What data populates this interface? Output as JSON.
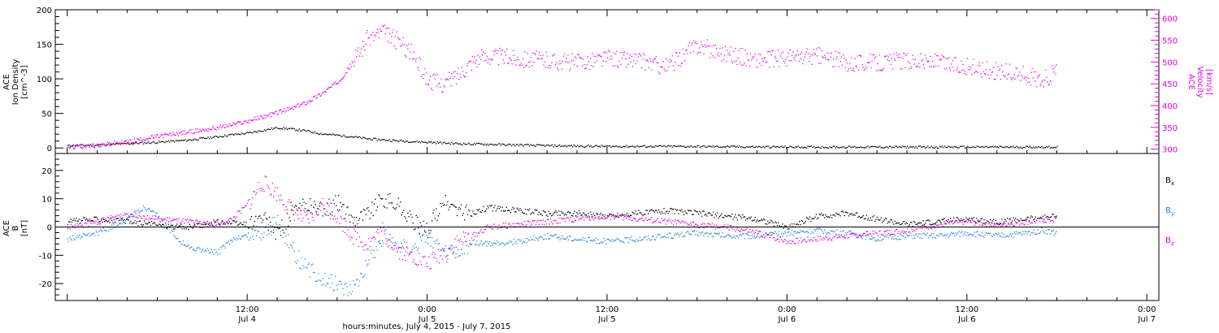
{
  "colors": {
    "axis": "#000000",
    "density": "#000000",
    "velocity": "#e400e4",
    "bx": "#000000",
    "by": "#1e84d8",
    "bz": "#e400e4"
  },
  "top_panel": {
    "left_label": [
      "ACE",
      "Ion Density",
      "[cm^-3]"
    ],
    "right_label": [
      "ACE",
      "Velocity",
      "[km/s]"
    ]
  },
  "bottom_panel": {
    "left_label": [
      "ACE",
      "B",
      "[nT]"
    ],
    "legend": [
      {
        "base": "B",
        "sub": "x",
        "color": "#000000"
      },
      {
        "base": "B",
        "sub": "y",
        "color": "#1e84d8"
      },
      {
        "base": "B",
        "sub": "z",
        "color": "#e400e4"
      }
    ]
  },
  "x_axis": {
    "title": "hours:minutes, July  4, 2015 - July  7, 2015",
    "tick_labels": [
      {
        "hours": 12,
        "time": "12:00",
        "day": "Jul 4"
      },
      {
        "hours": 24,
        "time": "0:00",
        "day": "Jul 5"
      },
      {
        "hours": 36,
        "time": "12:00",
        "day": "Jul 5"
      },
      {
        "hours": 48,
        "time": "0:00",
        "day": "Jul 6"
      },
      {
        "hours": 60,
        "time": "12:00",
        "day": "Jul 6"
      },
      {
        "hours": 72,
        "time": "0:00",
        "day": "Jul 7"
      }
    ]
  },
  "chart_data": [
    {
      "type": "scatter",
      "panel": "top",
      "x_unit": "hours since Jul 4 00:00",
      "xlim": [
        -0.8,
        72.8
      ],
      "ylim_left": [
        -8,
        200
      ],
      "ylim_right": [
        290,
        620
      ],
      "y_left_ticks": [
        0,
        50,
        100,
        150,
        200
      ],
      "y_right_ticks": [
        300,
        350,
        400,
        450,
        500,
        550,
        600
      ],
      "series": [
        {
          "axis": "left",
          "color": "#000000",
          "x": [
            0,
            2,
            4,
            6,
            8,
            10,
            11,
            12,
            13,
            14,
            15,
            16,
            17,
            18,
            19,
            20,
            22,
            24,
            26,
            28,
            30,
            32,
            36,
            40,
            44,
            48,
            52,
            56,
            60,
            64,
            66
          ],
          "values": [
            4,
            5,
            7,
            9,
            12,
            17,
            20,
            22,
            26,
            30,
            28,
            25,
            21,
            19,
            17,
            14,
            11,
            9,
            7,
            6,
            5,
            4,
            3,
            3,
            2.5,
            2,
            2,
            2,
            2,
            2,
            2
          ]
        },
        {
          "axis": "right",
          "color": "#e400e4",
          "x": [
            0,
            2,
            4,
            6,
            8,
            10,
            12,
            13,
            14,
            15,
            16,
            17,
            18,
            18.5,
            19,
            20,
            21,
            22,
            23,
            24,
            25,
            26,
            27,
            28,
            30,
            32,
            34,
            36,
            38,
            40,
            42,
            44,
            46,
            48,
            50,
            52,
            54,
            56,
            58,
            60,
            62,
            64,
            65,
            66
          ],
          "values": [
            305,
            310,
            318,
            330,
            340,
            350,
            365,
            375,
            385,
            395,
            410,
            430,
            455,
            475,
            500,
            555,
            570,
            550,
            520,
            460,
            450,
            470,
            505,
            515,
            510,
            505,
            500,
            510,
            505,
            490,
            540,
            520,
            505,
            510,
            515,
            500,
            500,
            505,
            500,
            490,
            480,
            470,
            460,
            480
          ]
        }
      ]
    },
    {
      "type": "scatter",
      "panel": "bottom",
      "x_unit": "hours since Jul 4 00:00",
      "xlim": [
        -0.8,
        72.8
      ],
      "ylim": [
        -26,
        26
      ],
      "y_ticks": [
        -20,
        -10,
        0,
        10,
        20
      ],
      "series": [
        {
          "name": "Bx",
          "color": "#000000",
          "x": [
            0,
            2,
            4,
            6,
            8,
            10,
            12,
            13,
            14,
            15,
            16,
            17,
            18,
            19,
            20,
            21,
            22,
            23,
            24,
            25,
            26,
            27,
            28,
            30,
            32,
            34,
            36,
            38,
            40,
            42,
            44,
            46,
            48,
            50,
            52,
            54,
            56,
            58,
            60,
            62,
            64,
            66
          ],
          "values": [
            2,
            3,
            2,
            1,
            0,
            2,
            1,
            3,
            -2,
            5,
            8,
            6,
            9,
            3,
            5,
            10,
            8,
            2,
            -1,
            9,
            6,
            5,
            7,
            6,
            5,
            5,
            4,
            5,
            6,
            5,
            4,
            3,
            0,
            4,
            5,
            3,
            1,
            2,
            3,
            2,
            3,
            4
          ]
        },
        {
          "name": "By",
          "color": "#1e84d8",
          "x": [
            0,
            2,
            4,
            5,
            6,
            7,
            8,
            10,
            11,
            12,
            13,
            14,
            15,
            16,
            17,
            18,
            19,
            20,
            21,
            22,
            23,
            24,
            25,
            26,
            27,
            28,
            30,
            32,
            34,
            36,
            38,
            40,
            42,
            44,
            46,
            48,
            50,
            52,
            54,
            56,
            58,
            60,
            62,
            64,
            65,
            66
          ],
          "values": [
            -4,
            -2,
            3,
            7,
            4,
            -2,
            -7,
            -9,
            -4,
            -3,
            -2,
            2,
            -8,
            -15,
            -18,
            -20,
            -22,
            -12,
            -4,
            -6,
            -7,
            -3,
            -9,
            -10,
            -5,
            -6,
            -5,
            -3,
            -4,
            -5,
            -4,
            -3,
            -2,
            -3,
            -3,
            -2,
            -1,
            -2,
            -4,
            -3,
            -3,
            -2,
            -3,
            -2,
            -1,
            -2
          ]
        },
        {
          "name": "Bz",
          "color": "#e400e4",
          "x": [
            0,
            2,
            4,
            6,
            8,
            10,
            11,
            12,
            13,
            14,
            15,
            16,
            17,
            18,
            19,
            20,
            21,
            22,
            23,
            24,
            25,
            26,
            27,
            28,
            30,
            32,
            34,
            36,
            38,
            40,
            42,
            44,
            46,
            48,
            50,
            52,
            54,
            56,
            58,
            60,
            62,
            64,
            66
          ],
          "values": [
            0,
            2,
            5,
            3,
            2,
            1,
            3,
            8,
            16,
            12,
            6,
            2,
            8,
            4,
            -3,
            -6,
            -1,
            -8,
            -10,
            -13,
            -9,
            -5,
            -3,
            0,
            1,
            2,
            3,
            4,
            3,
            2,
            1,
            0,
            -2,
            -5,
            -4,
            -3,
            -2,
            -1,
            1,
            2,
            1,
            2,
            3
          ]
        }
      ]
    }
  ]
}
